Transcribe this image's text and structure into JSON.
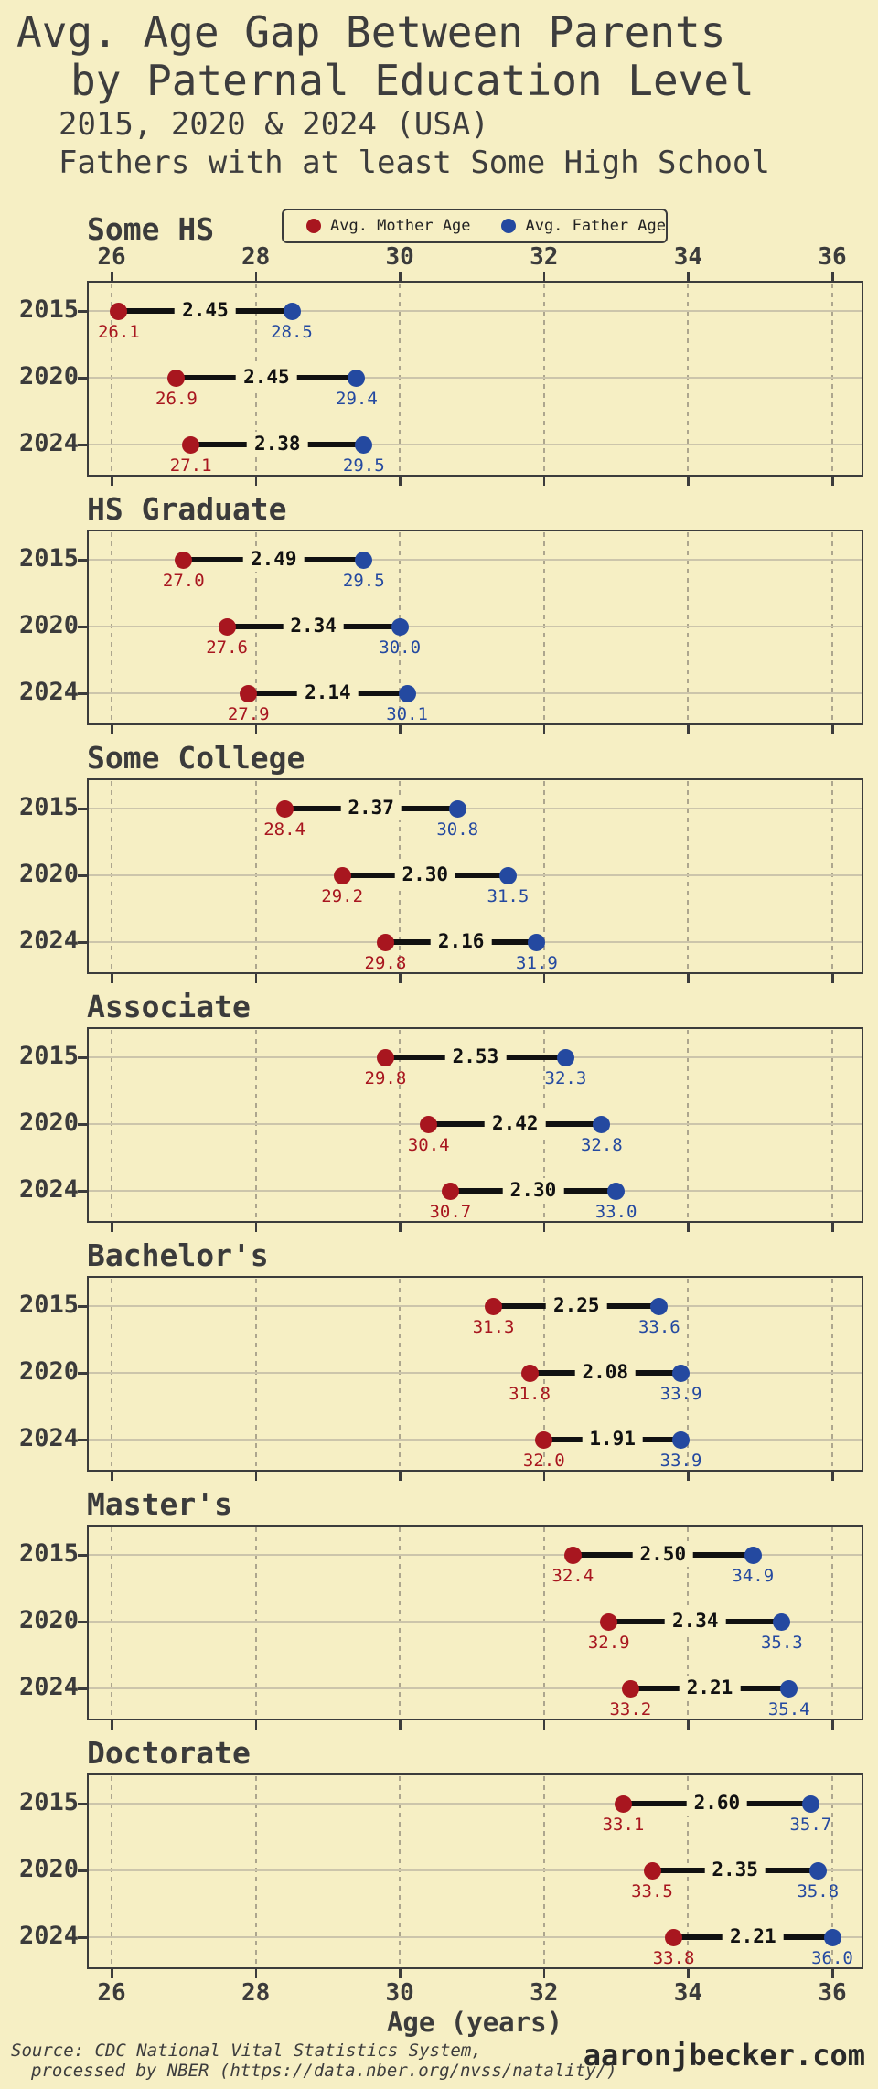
{
  "header": {
    "title_line1": "Avg. Age Gap Between Parents",
    "title_line2": "by Paternal Education Level",
    "subtitle_line1": "2015, 2020 & 2024 (USA)",
    "subtitle_line2": "Fathers with at least Some High School"
  },
  "legend": {
    "mother_label": "Avg. Mother Age",
    "father_label": "Avg. Father Age"
  },
  "colors": {
    "background": "#F6EFC4",
    "mother": "#A8161F",
    "father": "#2449A0",
    "line": "#111111",
    "text": "#3B3B3B",
    "frame": "#3C3C3C",
    "grid_horizontal": "#CCC5AB",
    "grid_vertical": "#ADA68E"
  },
  "x_axis": {
    "label": "Age (years)",
    "ticks": [
      "26",
      "28",
      "30",
      "32",
      "34",
      "36"
    ],
    "min": 25.66,
    "max": 36.44
  },
  "chart_data": {
    "type": "dumbbell",
    "title": "Avg. Age Gap Between Parents by Paternal Education Level",
    "subtitle": "2015, 2020 & 2024 (USA) - Fathers with at least Some High School",
    "xlabel": "Age (years)",
    "xlim": [
      25.66,
      36.44
    ],
    "x_ticks": [
      26,
      28,
      30,
      32,
      34,
      36
    ],
    "grid": true,
    "legend_position": "top",
    "series_labels": [
      "Avg. Mother Age",
      "Avg. Father Age"
    ],
    "years": [
      "2015",
      "2020",
      "2024"
    ],
    "panels": [
      {
        "education": "Some HS",
        "rows": [
          {
            "year": "2015",
            "mother": 26.1,
            "father": 28.5,
            "mother_label": "26.1",
            "father_label": "28.5",
            "gap": "2.45"
          },
          {
            "year": "2020",
            "mother": 26.9,
            "father": 29.4,
            "mother_label": "26.9",
            "father_label": "29.4",
            "gap": "2.45"
          },
          {
            "year": "2024",
            "mother": 27.1,
            "father": 29.5,
            "mother_label": "27.1",
            "father_label": "29.5",
            "gap": "2.38"
          }
        ]
      },
      {
        "education": "HS Graduate",
        "rows": [
          {
            "year": "2015",
            "mother": 27.0,
            "father": 29.5,
            "mother_label": "27.0",
            "father_label": "29.5",
            "gap": "2.49"
          },
          {
            "year": "2020",
            "mother": 27.6,
            "father": 30.0,
            "mother_label": "27.6",
            "father_label": "30.0",
            "gap": "2.34"
          },
          {
            "year": "2024",
            "mother": 27.9,
            "father": 30.1,
            "mother_label": "27.9",
            "father_label": "30.1",
            "gap": "2.14"
          }
        ]
      },
      {
        "education": "Some College",
        "rows": [
          {
            "year": "2015",
            "mother": 28.4,
            "father": 30.8,
            "mother_label": "28.4",
            "father_label": "30.8",
            "gap": "2.37"
          },
          {
            "year": "2020",
            "mother": 29.2,
            "father": 31.5,
            "mother_label": "29.2",
            "father_label": "31.5",
            "gap": "2.30"
          },
          {
            "year": "2024",
            "mother": 29.8,
            "father": 31.9,
            "mother_label": "29.8",
            "father_label": "31.9",
            "gap": "2.16"
          }
        ]
      },
      {
        "education": "Associate",
        "rows": [
          {
            "year": "2015",
            "mother": 29.8,
            "father": 32.3,
            "mother_label": "29.8",
            "father_label": "32.3",
            "gap": "2.53"
          },
          {
            "year": "2020",
            "mother": 30.4,
            "father": 32.8,
            "mother_label": "30.4",
            "father_label": "32.8",
            "gap": "2.42"
          },
          {
            "year": "2024",
            "mother": 30.7,
            "father": 33.0,
            "mother_label": "30.7",
            "father_label": "33.0",
            "gap": "2.30"
          }
        ]
      },
      {
        "education": "Bachelor's",
        "rows": [
          {
            "year": "2015",
            "mother": 31.3,
            "father": 33.6,
            "mother_label": "31.3",
            "father_label": "33.6",
            "gap": "2.25"
          },
          {
            "year": "2020",
            "mother": 31.8,
            "father": 33.9,
            "mother_label": "31.8",
            "father_label": "33.9",
            "gap": "2.08"
          },
          {
            "year": "2024",
            "mother": 32.0,
            "father": 33.9,
            "mother_label": "32.0",
            "father_label": "33.9",
            "gap": "1.91"
          }
        ]
      },
      {
        "education": "Master's",
        "rows": [
          {
            "year": "2015",
            "mother": 32.4,
            "father": 34.9,
            "mother_label": "32.4",
            "father_label": "34.9",
            "gap": "2.50"
          },
          {
            "year": "2020",
            "mother": 32.9,
            "father": 35.3,
            "mother_label": "32.9",
            "father_label": "35.3",
            "gap": "2.34"
          },
          {
            "year": "2024",
            "mother": 33.2,
            "father": 35.4,
            "mother_label": "33.2",
            "father_label": "35.4",
            "gap": "2.21"
          }
        ]
      },
      {
        "education": "Doctorate",
        "rows": [
          {
            "year": "2015",
            "mother": 33.1,
            "father": 35.7,
            "mother_label": "33.1",
            "father_label": "35.7",
            "gap": "2.60"
          },
          {
            "year": "2020",
            "mother": 33.5,
            "father": 35.8,
            "mother_label": "33.5",
            "father_label": "35.8",
            "gap": "2.35"
          },
          {
            "year": "2024",
            "mother": 33.8,
            "father": 36.0,
            "mother_label": "33.8",
            "father_label": "36.0",
            "gap": "2.21"
          }
        ]
      }
    ]
  },
  "footer": {
    "source_line1": "Source: CDC National Vital Statistics System,",
    "source_line2": "processed by NBER (https://data.nber.org/nvss/natality/)",
    "site": "aaronjbecker.com"
  }
}
